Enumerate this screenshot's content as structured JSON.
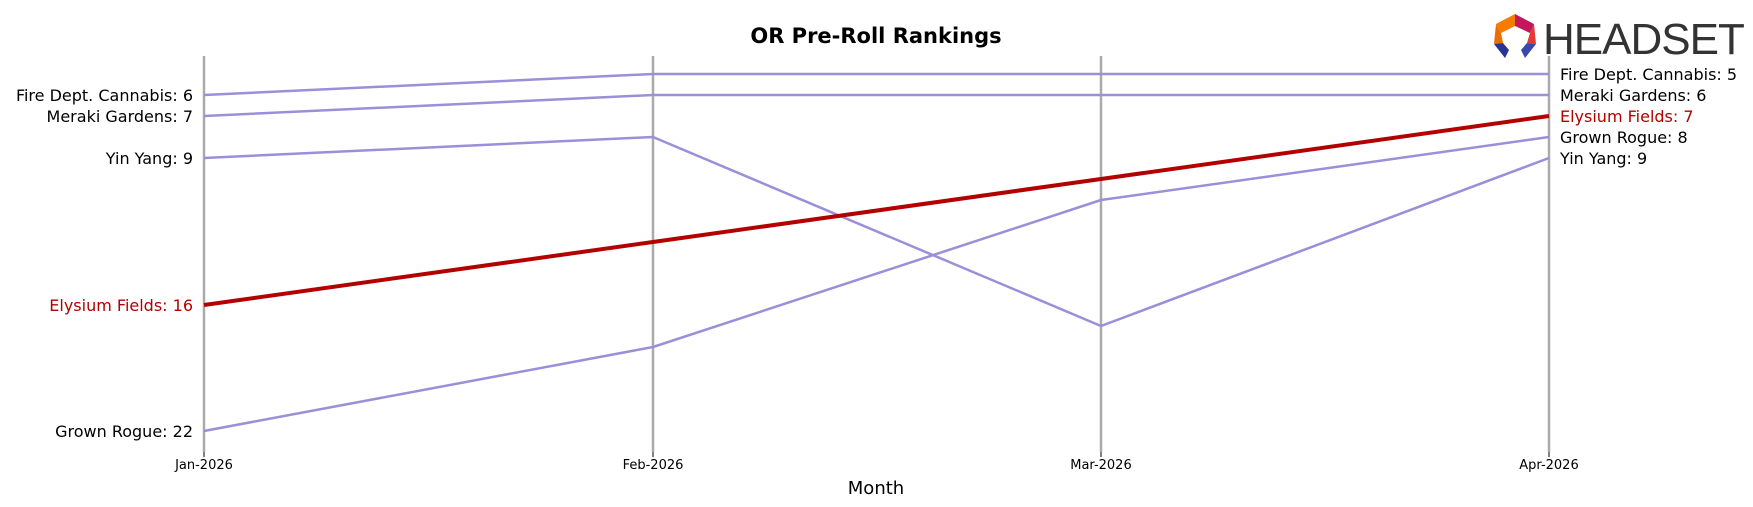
{
  "chart_data": {
    "type": "line",
    "title": "OR Pre-Roll Rankings",
    "xlabel": "Month",
    "ylabel": "",
    "categories": [
      "Jan-2026",
      "Feb-2026",
      "Mar-2026",
      "Apr-2026"
    ],
    "y_inverted": true,
    "grid": "vertical lines at each month",
    "highlight_series": "Elysium Fields",
    "colors": {
      "default": "#9b8fd9",
      "highlight": "#b30000",
      "vline": "#aaaaaa"
    },
    "series": [
      {
        "name": "Fire Dept. Cannabis",
        "values": [
          6,
          5,
          5,
          5
        ],
        "start_label": "Fire Dept. Cannabis: 6",
        "end_label": "Fire Dept. Cannabis: 5"
      },
      {
        "name": "Meraki Gardens",
        "values": [
          7,
          6,
          6,
          6
        ],
        "start_label": "Meraki Gardens: 7",
        "end_label": "Meraki Gardens: 6"
      },
      {
        "name": "Yin Yang",
        "values": [
          9,
          8,
          17,
          9
        ],
        "start_label": "Yin Yang: 9",
        "end_label": "Yin Yang: 9"
      },
      {
        "name": "Elysium Fields",
        "values": [
          16,
          13,
          10,
          7
        ],
        "start_label": "Elysium Fields: 16",
        "end_label": "Elysium Fields: 7"
      },
      {
        "name": "Grown Rogue",
        "values": [
          22,
          18,
          11,
          8
        ],
        "start_label": "Grown Rogue: 22",
        "end_label": "Grown Rogue: 8"
      }
    ]
  },
  "logo": {
    "text": "HEADSET"
  }
}
